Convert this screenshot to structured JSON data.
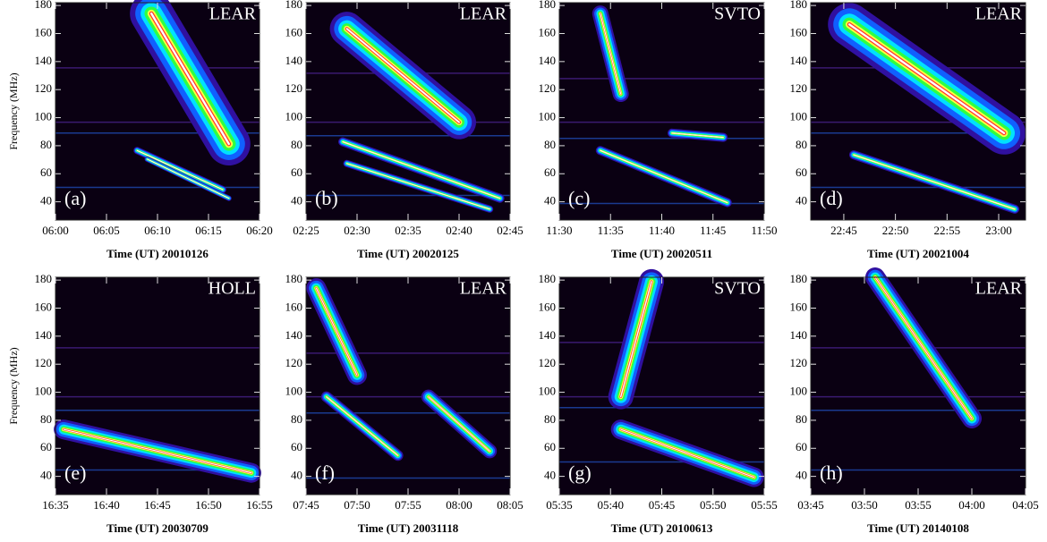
{
  "chart_data": [
    {
      "type": "spectrogram",
      "panel_label": "(a)",
      "station": "LEAR",
      "ylabel": "Frequency (MHz)",
      "xlabel": "Time (UT) 20010126",
      "xlim": [
        360,
        380
      ],
      "xticks": [
        {
          "value": 360,
          "label": "06:00"
        },
        {
          "value": 365,
          "label": "06:05"
        },
        {
          "value": 370,
          "label": "06:10"
        },
        {
          "value": 375,
          "label": "06:15"
        },
        {
          "value": 380,
          "label": "06:20"
        }
      ],
      "ylim": [
        27,
        182
      ],
      "yticks": [
        40,
        60,
        80,
        100,
        120,
        140,
        160,
        180
      ]
    },
    {
      "type": "spectrogram",
      "panel_label": "(b)",
      "station": "LEAR",
      "xlabel": "Time (UT) 20020125",
      "xlim": [
        145,
        165
      ],
      "xticks": [
        {
          "value": 145,
          "label": "02:25"
        },
        {
          "value": 150,
          "label": "02:30"
        },
        {
          "value": 155,
          "label": "02:35"
        },
        {
          "value": 160,
          "label": "02:40"
        },
        {
          "value": 165,
          "label": "02:45"
        }
      ],
      "ylim": [
        27,
        182
      ],
      "yticks": [
        40,
        60,
        80,
        100,
        120,
        140,
        160,
        180
      ]
    },
    {
      "type": "spectrogram",
      "panel_label": "(c)",
      "station": "SVTO",
      "xlabel": "Time (UT) 20020511",
      "xlim": [
        690,
        710
      ],
      "xticks": [
        {
          "value": 690,
          "label": "11:30"
        },
        {
          "value": 695,
          "label": "11:35"
        },
        {
          "value": 700,
          "label": "11:40"
        },
        {
          "value": 705,
          "label": "11:45"
        },
        {
          "value": 710,
          "label": "11:50"
        }
      ],
      "ylim": [
        27,
        182
      ],
      "yticks": [
        40,
        60,
        80,
        100,
        120,
        140,
        160,
        180
      ]
    },
    {
      "type": "spectrogram",
      "panel_label": "(d)",
      "station": "LEAR",
      "xlabel": "Time (UT) 20021004",
      "xlim": [
        1361.8,
        1382.6
      ],
      "xticks": [
        {
          "value": 1365,
          "label": "22:45"
        },
        {
          "value": 1370,
          "label": "22:50"
        },
        {
          "value": 1375,
          "label": "22:55"
        },
        {
          "value": 1380,
          "label": "23:00"
        }
      ],
      "ylim": [
        27,
        182
      ],
      "yticks": [
        40,
        60,
        80,
        100,
        120,
        140,
        160,
        180
      ]
    },
    {
      "type": "spectrogram",
      "panel_label": "(e)",
      "station": "HOLL",
      "ylabel": "Frequency (MHz)",
      "xlabel": "Time (UT) 20030709",
      "xlim": [
        995,
        1015
      ],
      "xticks": [
        {
          "value": 995,
          "label": "16:35"
        },
        {
          "value": 1000,
          "label": "16:40"
        },
        {
          "value": 1005,
          "label": "16:45"
        },
        {
          "value": 1010,
          "label": "16:50"
        },
        {
          "value": 1015,
          "label": "16:55"
        }
      ],
      "ylim": [
        27,
        182
      ],
      "yticks": [
        40,
        60,
        80,
        100,
        120,
        140,
        160,
        180
      ]
    },
    {
      "type": "spectrogram",
      "panel_label": "(f)",
      "station": "LEAR",
      "xlabel": "Time (UT) 20031118",
      "xlim": [
        465,
        485
      ],
      "xticks": [
        {
          "value": 465,
          "label": "07:45"
        },
        {
          "value": 470,
          "label": "07:50"
        },
        {
          "value": 475,
          "label": "07:55"
        },
        {
          "value": 480,
          "label": "08:00"
        },
        {
          "value": 485,
          "label": "08:05"
        }
      ],
      "ylim": [
        27,
        182
      ],
      "yticks": [
        40,
        60,
        80,
        100,
        120,
        140,
        160,
        180
      ]
    },
    {
      "type": "spectrogram",
      "panel_label": "(g)",
      "station": "SVTO",
      "xlabel": "Time (UT) 20100613",
      "xlim": [
        335,
        355
      ],
      "xticks": [
        {
          "value": 335,
          "label": "05:35"
        },
        {
          "value": 340,
          "label": "05:40"
        },
        {
          "value": 345,
          "label": "05:45"
        },
        {
          "value": 350,
          "label": "05:50"
        },
        {
          "value": 355,
          "label": "05:55"
        }
      ],
      "ylim": [
        27,
        182
      ],
      "yticks": [
        40,
        60,
        80,
        100,
        120,
        140,
        160,
        180
      ]
    },
    {
      "type": "spectrogram",
      "panel_label": "(h)",
      "station": "LEAR",
      "xlabel": "Time (UT) 20140108",
      "xlim": [
        225,
        245
      ],
      "xticks": [
        {
          "value": 225,
          "label": "03:45"
        },
        {
          "value": 230,
          "label": "03:50"
        },
        {
          "value": 235,
          "label": "03:55"
        },
        {
          "value": 240,
          "label": "04:00"
        },
        {
          "value": 245,
          "label": "04:05"
        }
      ],
      "ylim": [
        27,
        182
      ],
      "yticks": [
        40,
        60,
        80,
        100,
        120,
        140,
        160,
        180
      ]
    }
  ]
}
